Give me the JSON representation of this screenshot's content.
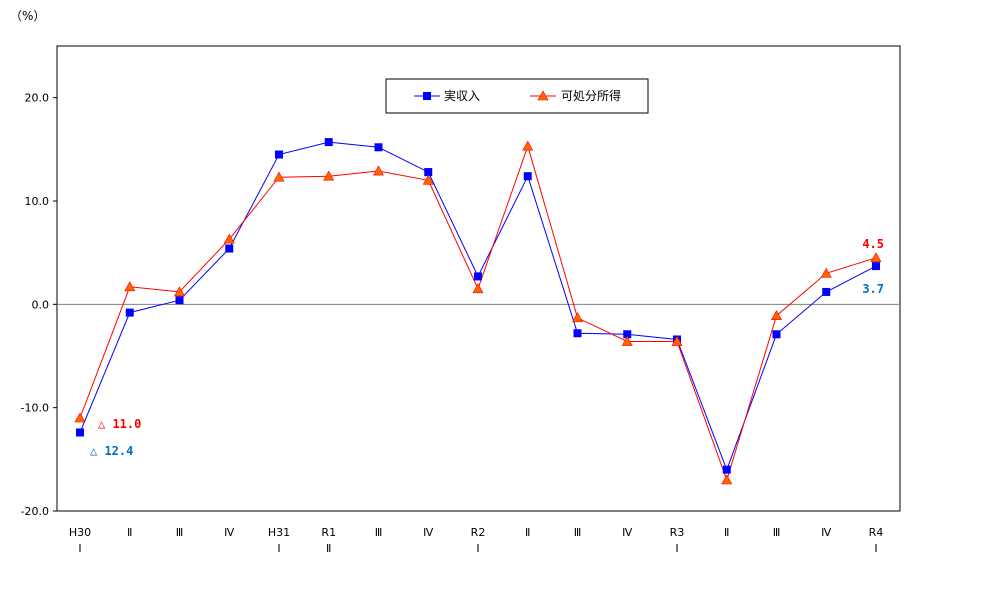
{
  "chart_data": {
    "type": "line",
    "unit_label": "（%）",
    "categories": [
      {
        "top": "H30",
        "bottom": "Ⅰ"
      },
      {
        "top": "",
        "bottom": "Ⅱ"
      },
      {
        "top": "",
        "bottom": "Ⅲ"
      },
      {
        "top": "",
        "bottom": "Ⅳ"
      },
      {
        "top": "H31",
        "bottom": "Ⅰ"
      },
      {
        "top": "R1",
        "bottom": "Ⅱ"
      },
      {
        "top": "",
        "bottom": "Ⅲ"
      },
      {
        "top": "",
        "bottom": "Ⅳ"
      },
      {
        "top": "R2",
        "bottom": "Ⅰ"
      },
      {
        "top": "",
        "bottom": "Ⅱ"
      },
      {
        "top": "",
        "bottom": "Ⅲ"
      },
      {
        "top": "",
        "bottom": "Ⅳ"
      },
      {
        "top": "R3",
        "bottom": "Ⅰ"
      },
      {
        "top": "",
        "bottom": "Ⅱ"
      },
      {
        "top": "",
        "bottom": "Ⅲ"
      },
      {
        "top": "",
        "bottom": "Ⅳ"
      },
      {
        "top": "R4",
        "bottom": "Ⅰ"
      }
    ],
    "ylim": [
      -20,
      25
    ],
    "yticks": [
      20,
      10,
      0,
      -10,
      -20
    ],
    "ytick_labels": [
      "20.0",
      "10.0",
      "0.0",
      "-10.0",
      "-20.0"
    ],
    "series": [
      {
        "name": "実収入",
        "color": "#0000ff",
        "marker": "square",
        "values": [
          -12.4,
          -0.8,
          0.4,
          5.4,
          14.5,
          15.7,
          15.2,
          12.8,
          2.7,
          12.4,
          -2.8,
          -2.9,
          -3.4,
          -16.0,
          -2.9,
          1.2,
          3.7
        ]
      },
      {
        "name": "可処分所得",
        "color": "#ff0000",
        "marker_color": "#ff6600",
        "marker": "triangle",
        "values": [
          -11.0,
          1.7,
          1.2,
          6.3,
          12.3,
          12.4,
          12.9,
          12.0,
          1.5,
          15.3,
          -1.3,
          -3.6,
          -3.6,
          -17.0,
          -1.1,
          3.0,
          4.5
        ]
      }
    ],
    "annotations": [
      {
        "text": "△ 11.0",
        "color": "#ff0000"
      },
      {
        "text": "△ 12.4",
        "color": "#0070c0"
      },
      {
        "text": "4.5",
        "color": "#ff0000"
      },
      {
        "text": "3.7",
        "color": "#0070c0"
      }
    ],
    "grid": false,
    "zero_line": true,
    "legend_position": "top-center"
  }
}
